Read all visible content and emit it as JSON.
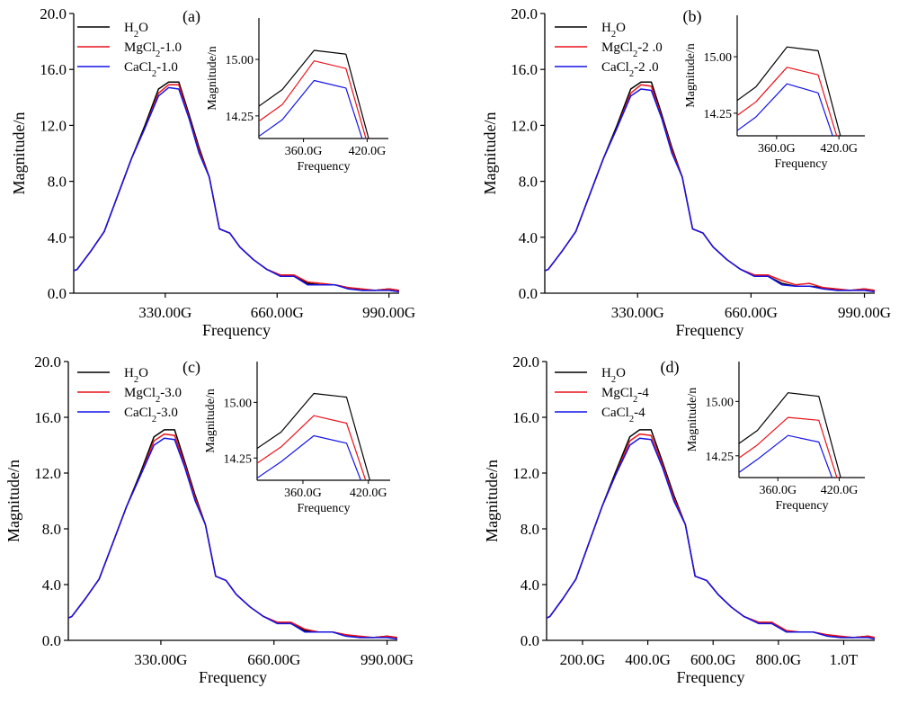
{
  "colors": {
    "h2o": "#000000",
    "mg": "#e8121b",
    "ca": "#1414e6"
  },
  "chart_data": [
    {
      "type": "line",
      "label": "(a)",
      "xlabel": "Frequency",
      "ylabel": "Magnitude/n",
      "xlim": [
        60,
        1020
      ],
      "ylim": [
        0,
        20
      ],
      "xticks": [
        {
          "v": 330,
          "label": "330.00G"
        },
        {
          "v": 660,
          "label": "660.00G"
        },
        {
          "v": 990,
          "label": "990.00G"
        }
      ],
      "yticks": [
        {
          "v": 0,
          "label": "0.0"
        },
        {
          "v": 4,
          "label": "4.0"
        },
        {
          "v": 8,
          "label": "8.0"
        },
        {
          "v": 12,
          "label": "12.0"
        },
        {
          "v": 16,
          "label": "16.0"
        },
        {
          "v": 20,
          "label": "20.0"
        }
      ],
      "x": [
        60,
        70,
        110,
        150,
        190,
        230,
        270,
        310,
        340,
        370,
        400,
        430,
        460,
        490,
        520,
        550,
        590,
        630,
        670,
        710,
        750,
        790,
        830,
        870,
        910,
        950,
        990,
        1020
      ],
      "series": [
        {
          "name": "H₂O",
          "color_key": "h2o",
          "values": [
            1.6,
            1.7,
            3.0,
            4.4,
            7.0,
            9.6,
            12.0,
            14.6,
            15.1,
            15.1,
            12.8,
            10.4,
            8.3,
            4.6,
            4.3,
            3.3,
            2.4,
            1.7,
            1.3,
            1.2,
            0.7,
            0.6,
            0.6,
            0.4,
            0.2,
            0.2,
            0.3,
            0.2
          ]
        },
        {
          "name": "MgCl₂-1.0",
          "color_key": "mg",
          "values": [
            1.6,
            1.7,
            3.0,
            4.4,
            7.0,
            9.6,
            11.8,
            14.3,
            14.9,
            14.9,
            12.6,
            10.2,
            8.3,
            4.6,
            4.3,
            3.3,
            2.4,
            1.7,
            1.3,
            1.3,
            0.8,
            0.7,
            0.6,
            0.4,
            0.3,
            0.2,
            0.3,
            0.2
          ]
        },
        {
          "name": "CaCl₂-1.0",
          "color_key": "ca",
          "values": [
            1.6,
            1.7,
            3.0,
            4.4,
            7.0,
            9.6,
            11.8,
            14.1,
            14.7,
            14.6,
            12.5,
            10.0,
            8.3,
            4.6,
            4.3,
            3.3,
            2.4,
            1.7,
            1.2,
            1.2,
            0.6,
            0.6,
            0.6,
            0.3,
            0.2,
            0.2,
            0.2,
            0.1
          ]
        }
      ],
      "inset": {
        "xlabel": "Frequency",
        "ylabel": "Magnitude/n",
        "xlim": [
          318,
          440
        ],
        "ylim": [
          13.95,
          15.55
        ],
        "xticks": [
          {
            "v": 360,
            "label": "360.0G"
          },
          {
            "v": 420,
            "label": "420.0G"
          }
        ],
        "yticks": [
          {
            "v": 14.25,
            "label": "14.25"
          },
          {
            "v": 15.0,
            "label": "15.00"
          }
        ],
        "x": [
          300,
          340,
          370,
          400,
          430
        ],
        "series": [
          {
            "color_key": "h2o",
            "values": [
              14.2,
              14.6,
              15.12,
              15.07,
              13.5
            ]
          },
          {
            "color_key": "mg",
            "values": [
              14.0,
              14.4,
              14.98,
              14.88,
              13.4
            ]
          },
          {
            "color_key": "ca",
            "values": [
              13.8,
              14.2,
              14.72,
              14.62,
              13.3
            ]
          }
        ]
      }
    },
    {
      "type": "line",
      "label": "(b)",
      "xlabel": "Frequency",
      "ylabel": "Magnitude/n",
      "xlim": [
        60,
        1020
      ],
      "ylim": [
        0,
        20
      ],
      "xticks": [
        {
          "v": 330,
          "label": "330.00G"
        },
        {
          "v": 660,
          "label": "660.00G"
        },
        {
          "v": 990,
          "label": "990.00G"
        }
      ],
      "yticks": [
        {
          "v": 0,
          "label": "0.0"
        },
        {
          "v": 4,
          "label": "4.0"
        },
        {
          "v": 8,
          "label": "8.0"
        },
        {
          "v": 12,
          "label": "12.0"
        },
        {
          "v": 16,
          "label": "16.0"
        },
        {
          "v": 20,
          "label": "20.0"
        }
      ],
      "x": [
        60,
        70,
        110,
        150,
        190,
        230,
        270,
        310,
        340,
        370,
        400,
        430,
        460,
        490,
        520,
        550,
        590,
        630,
        670,
        710,
        750,
        790,
        830,
        870,
        910,
        950,
        990,
        1020
      ],
      "series": [
        {
          "name": "H₂O",
          "color_key": "h2o",
          "values": [
            1.6,
            1.7,
            3.0,
            4.4,
            7.0,
            9.6,
            12.0,
            14.6,
            15.1,
            15.1,
            12.8,
            10.4,
            8.3,
            4.6,
            4.3,
            3.3,
            2.4,
            1.7,
            1.3,
            1.2,
            0.7,
            0.5,
            0.5,
            0.4,
            0.2,
            0.2,
            0.3,
            0.2
          ]
        },
        {
          "name": "MgCl₂-2 .0",
          "color_key": "mg",
          "values": [
            1.6,
            1.7,
            3.0,
            4.4,
            7.0,
            9.6,
            11.8,
            14.3,
            14.9,
            14.8,
            12.6,
            10.2,
            8.3,
            4.6,
            4.3,
            3.3,
            2.4,
            1.7,
            1.3,
            1.3,
            0.9,
            0.6,
            0.7,
            0.4,
            0.3,
            0.2,
            0.3,
            0.2
          ]
        },
        {
          "name": "CaCl₂-2 .0",
          "color_key": "ca",
          "values": [
            1.6,
            1.7,
            3.0,
            4.4,
            7.0,
            9.6,
            11.8,
            14.1,
            14.6,
            14.5,
            12.5,
            10.0,
            8.3,
            4.6,
            4.3,
            3.3,
            2.4,
            1.7,
            1.2,
            1.2,
            0.6,
            0.5,
            0.5,
            0.3,
            0.2,
            0.2,
            0.2,
            0.1
          ]
        }
      ],
      "inset": {
        "xlabel": "Frequency",
        "ylabel": "Magnitude/n",
        "xlim": [
          322,
          445
        ],
        "ylim": [
          13.95,
          15.55
        ],
        "xticks": [
          {
            "v": 360,
            "label": "360.0G"
          },
          {
            "v": 420,
            "label": "420.0G"
          }
        ],
        "yticks": [
          {
            "v": 14.25,
            "label": "14.25"
          },
          {
            "v": 15.0,
            "label": "15.00"
          }
        ],
        "x": [
          300,
          340,
          370,
          400,
          430
        ],
        "series": [
          {
            "color_key": "h2o",
            "values": [
              14.2,
              14.6,
              15.13,
              15.08,
              13.5
            ]
          },
          {
            "color_key": "mg",
            "values": [
              14.0,
              14.4,
              14.86,
              14.76,
              13.4
            ]
          },
          {
            "color_key": "ca",
            "values": [
              13.8,
              14.2,
              14.64,
              14.52,
              13.3
            ]
          }
        ]
      }
    },
    {
      "type": "line",
      "label": "(c)",
      "xlabel": "Frequency",
      "ylabel": "Magnitude/n",
      "xlim": [
        60,
        1020
      ],
      "ylim": [
        0,
        20
      ],
      "xticks": [
        {
          "v": 330,
          "label": "330.00G"
        },
        {
          "v": 660,
          "label": "660.00G"
        },
        {
          "v": 990,
          "label": "990.00G"
        }
      ],
      "yticks": [
        {
          "v": 0,
          "label": "0.0"
        },
        {
          "v": 4,
          "label": "4.0"
        },
        {
          "v": 8,
          "label": "8.0"
        },
        {
          "v": 12,
          "label": "12.0"
        },
        {
          "v": 16,
          "label": "16.0"
        },
        {
          "v": 20,
          "label": "20.0"
        }
      ],
      "x": [
        60,
        70,
        110,
        150,
        190,
        230,
        270,
        310,
        340,
        370,
        400,
        430,
        460,
        490,
        520,
        550,
        590,
        630,
        670,
        710,
        750,
        790,
        830,
        870,
        910,
        950,
        990,
        1020
      ],
      "series": [
        {
          "name": "H₂O",
          "color_key": "h2o",
          "values": [
            1.6,
            1.7,
            3.0,
            4.4,
            7.0,
            9.6,
            12.0,
            14.6,
            15.1,
            15.1,
            12.8,
            10.4,
            8.3,
            4.6,
            4.3,
            3.3,
            2.4,
            1.7,
            1.3,
            1.2,
            0.7,
            0.6,
            0.6,
            0.4,
            0.2,
            0.2,
            0.3,
            0.2
          ]
        },
        {
          "name": "MgCl₂-3.0",
          "color_key": "mg",
          "values": [
            1.6,
            1.7,
            3.0,
            4.4,
            7.0,
            9.6,
            11.8,
            14.3,
            14.8,
            14.7,
            12.6,
            10.2,
            8.3,
            4.6,
            4.3,
            3.3,
            2.4,
            1.7,
            1.3,
            1.3,
            0.8,
            0.6,
            0.6,
            0.4,
            0.3,
            0.2,
            0.3,
            0.2
          ]
        },
        {
          "name": "CaCl₂-3.0",
          "color_key": "ca",
          "values": [
            1.6,
            1.7,
            3.0,
            4.4,
            7.0,
            9.6,
            11.8,
            14.0,
            14.5,
            14.4,
            12.4,
            10.0,
            8.3,
            4.6,
            4.3,
            3.3,
            2.4,
            1.7,
            1.2,
            1.2,
            0.6,
            0.6,
            0.6,
            0.3,
            0.2,
            0.2,
            0.2,
            0.1
          ]
        }
      ],
      "inset": {
        "xlabel": "Frequency",
        "ylabel": "Magnitude/n",
        "xlim": [
          318,
          440
        ],
        "ylim": [
          13.95,
          15.55
        ],
        "xticks": [
          {
            "v": 360,
            "label": "360.0G"
          },
          {
            "v": 420,
            "label": "420.0G"
          }
        ],
        "yticks": [
          {
            "v": 14.25,
            "label": "14.25"
          },
          {
            "v": 15.0,
            "label": "15.00"
          }
        ],
        "x": [
          300,
          340,
          370,
          400,
          430
        ],
        "series": [
          {
            "color_key": "h2o",
            "values": [
              14.2,
              14.6,
              15.12,
              15.07,
              13.5
            ]
          },
          {
            "color_key": "mg",
            "values": [
              14.0,
              14.4,
              14.82,
              14.72,
              13.4
            ]
          },
          {
            "color_key": "ca",
            "values": [
              13.8,
              14.2,
              14.55,
              14.45,
              13.3
            ]
          }
        ]
      }
    },
    {
      "type": "line",
      "label": "(d)",
      "xlabel": "Frequency",
      "ylabel": "Magnitude/n",
      "xlim": [
        90,
        1095
      ],
      "ylim": [
        0,
        20
      ],
      "xticks": [
        {
          "v": 200,
          "label": "200.0G"
        },
        {
          "v": 400,
          "label": "400.0G"
        },
        {
          "v": 600,
          "label": "600.0G"
        },
        {
          "v": 800,
          "label": "800.0G"
        },
        {
          "v": 1000,
          "label": "1.0T"
        }
      ],
      "yticks": [
        {
          "v": 0,
          "label": "0.0"
        },
        {
          "v": 4,
          "label": "4.0"
        },
        {
          "v": 8,
          "label": "8.0"
        },
        {
          "v": 12,
          "label": "12.0"
        },
        {
          "v": 16,
          "label": "16.0"
        },
        {
          "v": 20,
          "label": "20.0"
        }
      ],
      "x": [
        90,
        100,
        140,
        180,
        220,
        260,
        300,
        345,
        375,
        410,
        445,
        480,
        515,
        545,
        580,
        615,
        655,
        695,
        740,
        780,
        825,
        865,
        905,
        950,
        990,
        1030,
        1075,
        1095
      ],
      "series": [
        {
          "name": "H₂O",
          "color_key": "h2o",
          "values": [
            1.6,
            1.7,
            3.0,
            4.4,
            7.0,
            9.6,
            12.0,
            14.6,
            15.1,
            15.1,
            12.8,
            10.4,
            8.3,
            4.6,
            4.3,
            3.3,
            2.4,
            1.7,
            1.3,
            1.2,
            0.6,
            0.6,
            0.6,
            0.4,
            0.2,
            0.2,
            0.3,
            0.2
          ]
        },
        {
          "name": "MgCl₂-4",
          "color_key": "mg",
          "values": [
            1.6,
            1.7,
            3.0,
            4.4,
            7.0,
            9.6,
            11.8,
            14.3,
            14.8,
            14.7,
            12.6,
            10.2,
            8.3,
            4.6,
            4.3,
            3.3,
            2.4,
            1.7,
            1.3,
            1.3,
            0.7,
            0.6,
            0.6,
            0.4,
            0.3,
            0.2,
            0.3,
            0.2
          ]
        },
        {
          "name": "CaCl₂-4",
          "color_key": "ca",
          "values": [
            1.6,
            1.7,
            3.0,
            4.4,
            7.0,
            9.6,
            11.8,
            14.0,
            14.5,
            14.4,
            12.4,
            10.0,
            8.3,
            4.6,
            4.3,
            3.3,
            2.4,
            1.7,
            1.2,
            1.2,
            0.6,
            0.6,
            0.6,
            0.3,
            0.2,
            0.2,
            0.2,
            0.1
          ]
        }
      ],
      "inset": {
        "xlabel": "Frequency",
        "ylabel": "Magnitude/n",
        "xlim": [
          322,
          445
        ],
        "ylim": [
          13.95,
          15.55
        ],
        "xticks": [
          {
            "v": 360,
            "label": "360.0G"
          },
          {
            "v": 420,
            "label": "420.0G"
          }
        ],
        "yticks": [
          {
            "v": 14.25,
            "label": "14.25"
          },
          {
            "v": 15.0,
            "label": "15.00"
          }
        ],
        "x": [
          300,
          340,
          370,
          400,
          430
        ],
        "series": [
          {
            "color_key": "h2o",
            "values": [
              14.2,
              14.6,
              15.12,
              15.07,
              13.5
            ]
          },
          {
            "color_key": "mg",
            "values": [
              14.0,
              14.4,
              14.78,
              14.74,
              13.4
            ]
          },
          {
            "color_key": "ca",
            "values": [
              13.8,
              14.2,
              14.53,
              14.44,
              13.3
            ]
          }
        ]
      }
    }
  ]
}
